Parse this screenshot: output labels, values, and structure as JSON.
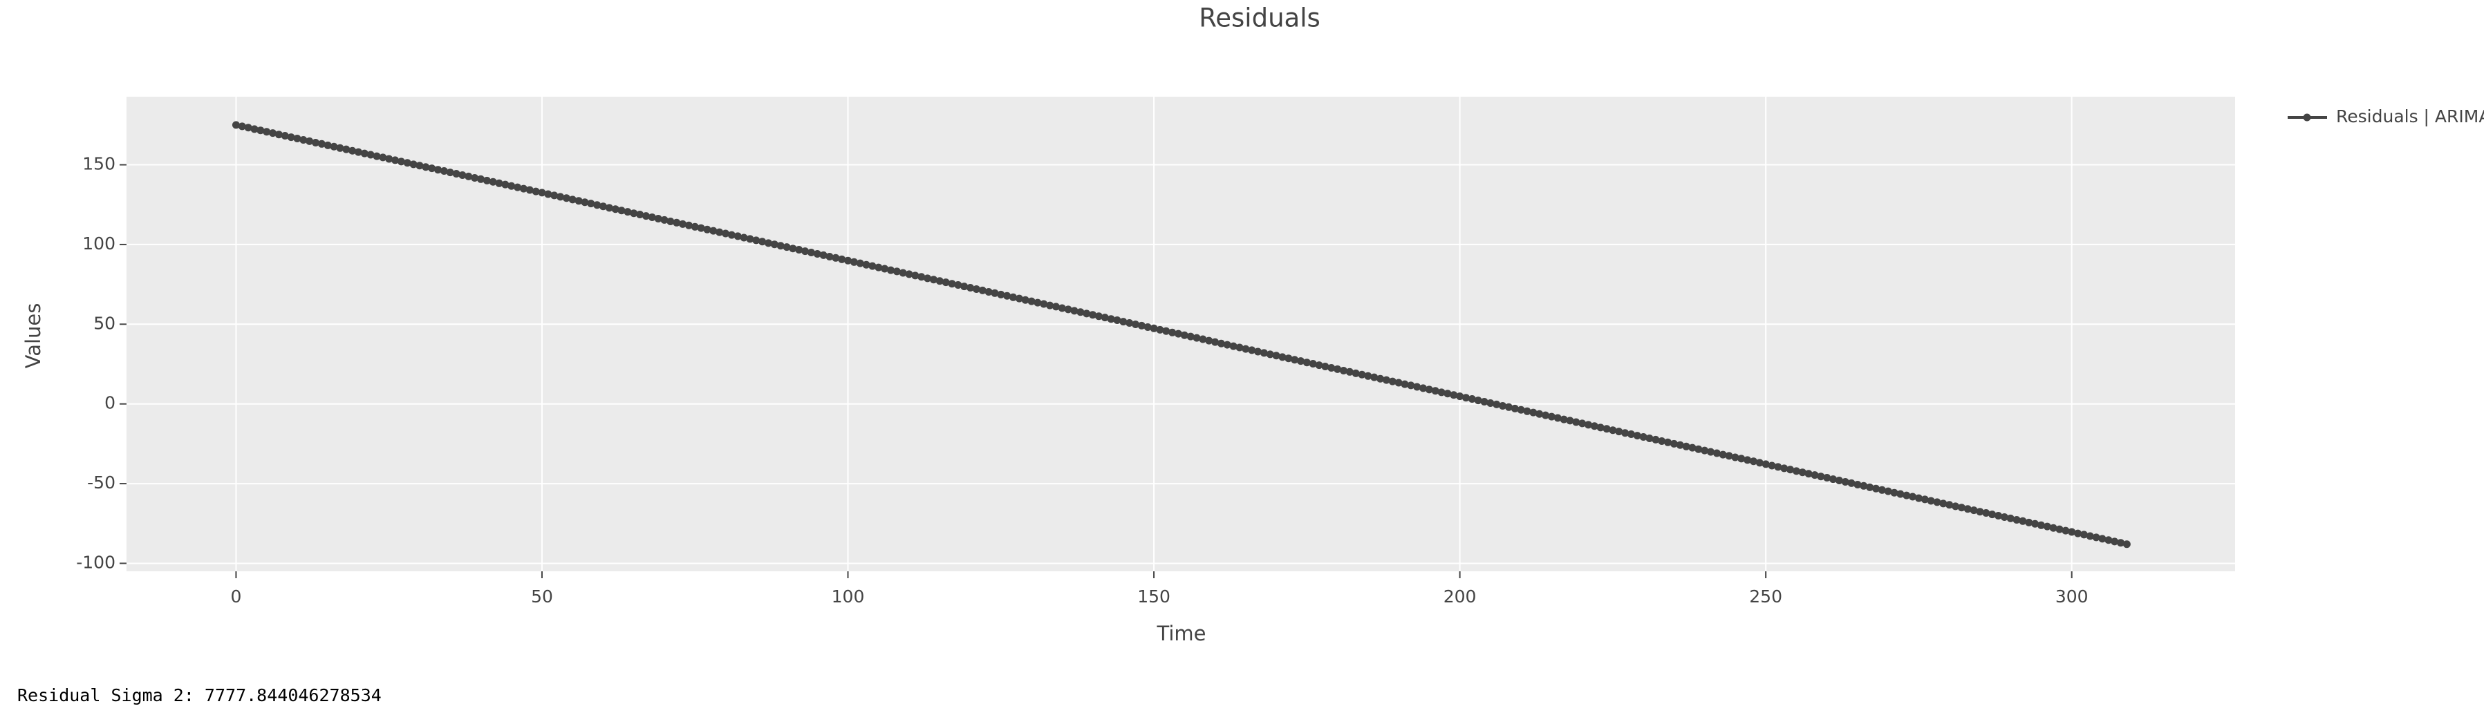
{
  "chart_data": {
    "type": "line",
    "title": "Residuals",
    "x_label": "Time",
    "y_label": "Values",
    "xlim": [
      -17.9,
      326.7
    ],
    "ylim": [
      -105,
      192.7
    ],
    "xticks": [
      0,
      50,
      100,
      150,
      200,
      250,
      300
    ],
    "yticks": [
      -100,
      -50,
      0,
      50,
      100,
      150
    ],
    "grid": true,
    "legend": "right",
    "x": [
      0,
      1,
      2,
      3,
      4,
      5,
      6,
      7,
      8,
      9,
      10,
      11,
      12,
      13,
      14,
      15,
      16,
      17,
      18,
      19,
      20,
      21,
      22,
      23,
      24,
      25,
      26,
      27,
      28,
      29,
      30,
      31,
      32,
      33,
      34,
      35,
      36,
      37,
      38,
      39,
      40,
      41,
      42,
      43,
      44,
      45,
      46,
      47,
      48,
      49,
      50,
      51,
      52,
      53,
      54,
      55,
      56,
      57,
      58,
      59,
      60,
      61,
      62,
      63,
      64,
      65,
      66,
      67,
      68,
      69,
      70,
      71,
      72,
      73,
      74,
      75,
      76,
      77,
      78,
      79,
      80,
      81,
      82,
      83,
      84,
      85,
      86,
      87,
      88,
      89,
      90,
      91,
      92,
      93,
      94,
      95,
      96,
      97,
      98,
      99,
      100,
      101,
      102,
      103,
      104,
      105,
      106,
      107,
      108,
      109,
      110,
      111,
      112,
      113,
      114,
      115,
      116,
      117,
      118,
      119,
      120,
      121,
      122,
      123,
      124,
      125,
      126,
      127,
      128,
      129,
      130,
      131,
      132,
      133,
      134,
      135,
      136,
      137,
      138,
      139,
      140,
      141,
      142,
      143,
      144,
      145,
      146,
      147,
      148,
      149,
      150,
      151,
      152,
      153,
      154,
      155,
      156,
      157,
      158,
      159,
      160,
      161,
      162,
      163,
      164,
      165,
      166,
      167,
      168,
      169,
      170,
      171,
      172,
      173,
      174,
      175,
      176,
      177,
      178,
      179,
      180,
      181,
      182,
      183,
      184,
      185,
      186,
      187,
      188,
      189,
      190,
      191,
      192,
      193,
      194,
      195,
      196,
      197,
      198,
      199,
      200,
      201,
      202,
      203,
      204,
      205,
      206,
      207,
      208,
      209,
      210,
      211,
      212,
      213,
      214,
      215,
      216,
      217,
      218,
      219,
      220,
      221,
      222,
      223,
      224,
      225,
      226,
      227,
      228,
      229,
      230,
      231,
      232,
      233,
      234,
      235,
      236,
      237,
      238,
      239,
      240,
      241,
      242,
      243,
      244,
      245,
      246,
      247,
      248,
      249,
      250,
      251,
      252,
      253,
      254,
      255,
      256,
      257,
      258,
      259,
      260,
      261,
      262,
      263,
      264,
      265,
      266,
      267,
      268,
      269,
      270,
      271,
      272,
      273,
      274,
      275,
      276,
      277,
      278,
      279,
      280,
      281,
      282,
      283,
      284,
      285,
      286,
      287,
      288,
      289,
      290,
      291,
      292,
      293,
      294,
      295,
      296,
      297,
      298,
      299,
      300,
      301,
      302,
      303,
      304,
      305,
      306,
      307,
      308,
      309
    ],
    "series": [
      {
        "name": "Residuals | ARIMA",
        "color": "#444444",
        "values": [
          175.0,
          174.1,
          173.3,
          172.4,
          171.6,
          170.7,
          169.9,
          169.0,
          168.2,
          167.3,
          166.5,
          165.6,
          164.8,
          163.9,
          163.1,
          162.2,
          161.4,
          160.5,
          159.7,
          158.8,
          158.0,
          157.1,
          156.3,
          155.4,
          154.6,
          153.7,
          152.9,
          152.0,
          151.2,
          150.3,
          149.5,
          148.6,
          147.8,
          146.9,
          146.1,
          145.2,
          144.4,
          143.5,
          142.7,
          141.8,
          141.0,
          140.1,
          139.3,
          138.4,
          137.6,
          136.7,
          135.9,
          135.0,
          134.2,
          133.3,
          132.5,
          131.6,
          130.8,
          129.9,
          129.1,
          128.2,
          127.4,
          126.5,
          125.7,
          124.8,
          123.9,
          123.0,
          122.2,
          121.3,
          120.5,
          119.6,
          118.8,
          117.9,
          117.1,
          116.2,
          115.4,
          114.5,
          113.7,
          112.8,
          112.0,
          111.1,
          110.3,
          109.4,
          108.6,
          107.7,
          106.9,
          106.0,
          105.2,
          104.3,
          103.5,
          102.6,
          101.8,
          100.9,
          100.1,
          99.2,
          98.4,
          97.5,
          96.7,
          95.8,
          95.0,
          94.1,
          93.3,
          92.4,
          91.6,
          90.7,
          89.9,
          89.0,
          88.2,
          87.3,
          86.5,
          85.6,
          84.8,
          83.9,
          83.1,
          82.2,
          81.4,
          80.5,
          79.7,
          78.8,
          78.0,
          77.1,
          76.3,
          75.4,
          74.6,
          73.7,
          72.9,
          72.0,
          71.2,
          70.3,
          69.5,
          68.6,
          67.8,
          66.9,
          66.1,
          65.2,
          64.4,
          63.5,
          62.7,
          61.8,
          61.0,
          60.1,
          59.3,
          58.4,
          57.6,
          56.7,
          55.9,
          55.0,
          54.2,
          53.3,
          52.5,
          51.6,
          50.8,
          49.9,
          49.1,
          48.2,
          47.4,
          46.5,
          45.7,
          44.8,
          44.0,
          43.1,
          42.3,
          41.4,
          40.6,
          39.7,
          38.8,
          37.9,
          37.1,
          36.2,
          35.4,
          34.5,
          33.7,
          32.8,
          32.0,
          31.1,
          30.3,
          29.4,
          28.6,
          27.7,
          26.9,
          26.0,
          25.2,
          24.3,
          23.5,
          22.6,
          21.8,
          20.9,
          20.1,
          19.2,
          18.4,
          17.5,
          16.7,
          15.8,
          15.0,
          14.1,
          13.3,
          12.4,
          11.6,
          10.7,
          9.9,
          9.0,
          8.2,
          7.3,
          6.5,
          5.6,
          4.8,
          3.9,
          3.1,
          2.2,
          1.4,
          0.5,
          -0.3,
          -1.2,
          -2.0,
          -2.9,
          -3.7,
          -4.6,
          -5.4,
          -6.3,
          -7.1,
          -8.0,
          -8.8,
          -9.7,
          -10.5,
          -11.4,
          -12.2,
          -13.1,
          -13.9,
          -14.8,
          -15.6,
          -16.5,
          -17.3,
          -18.2,
          -19.0,
          -19.9,
          -20.7,
          -21.6,
          -22.4,
          -23.3,
          -24.1,
          -25.0,
          -25.8,
          -26.7,
          -27.5,
          -28.4,
          -29.2,
          -30.1,
          -30.9,
          -31.8,
          -32.6,
          -33.5,
          -34.3,
          -35.2,
          -36.0,
          -36.9,
          -37.8,
          -38.7,
          -39.5,
          -40.4,
          -41.2,
          -42.1,
          -42.9,
          -43.8,
          -44.6,
          -45.5,
          -46.3,
          -47.2,
          -48.0,
          -48.9,
          -49.7,
          -50.6,
          -51.4,
          -52.3,
          -53.1,
          -54.0,
          -54.8,
          -55.7,
          -56.5,
          -57.4,
          -58.2,
          -59.1,
          -59.9,
          -60.8,
          -61.6,
          -62.5,
          -63.3,
          -64.2,
          -65.0,
          -65.9,
          -66.7,
          -67.6,
          -68.4,
          -69.3,
          -70.1,
          -71.0,
          -71.8,
          -72.7,
          -73.5,
          -74.4,
          -75.2,
          -76.1,
          -76.9,
          -77.8,
          -78.6,
          -79.5,
          -80.3,
          -81.2,
          -82.0,
          -82.9,
          -83.7,
          -84.6,
          -85.4,
          -86.3,
          -87.1,
          -88.0
        ]
      }
    ]
  },
  "footer": {
    "text": "Residual Sigma 2: 7777.844046278534"
  }
}
